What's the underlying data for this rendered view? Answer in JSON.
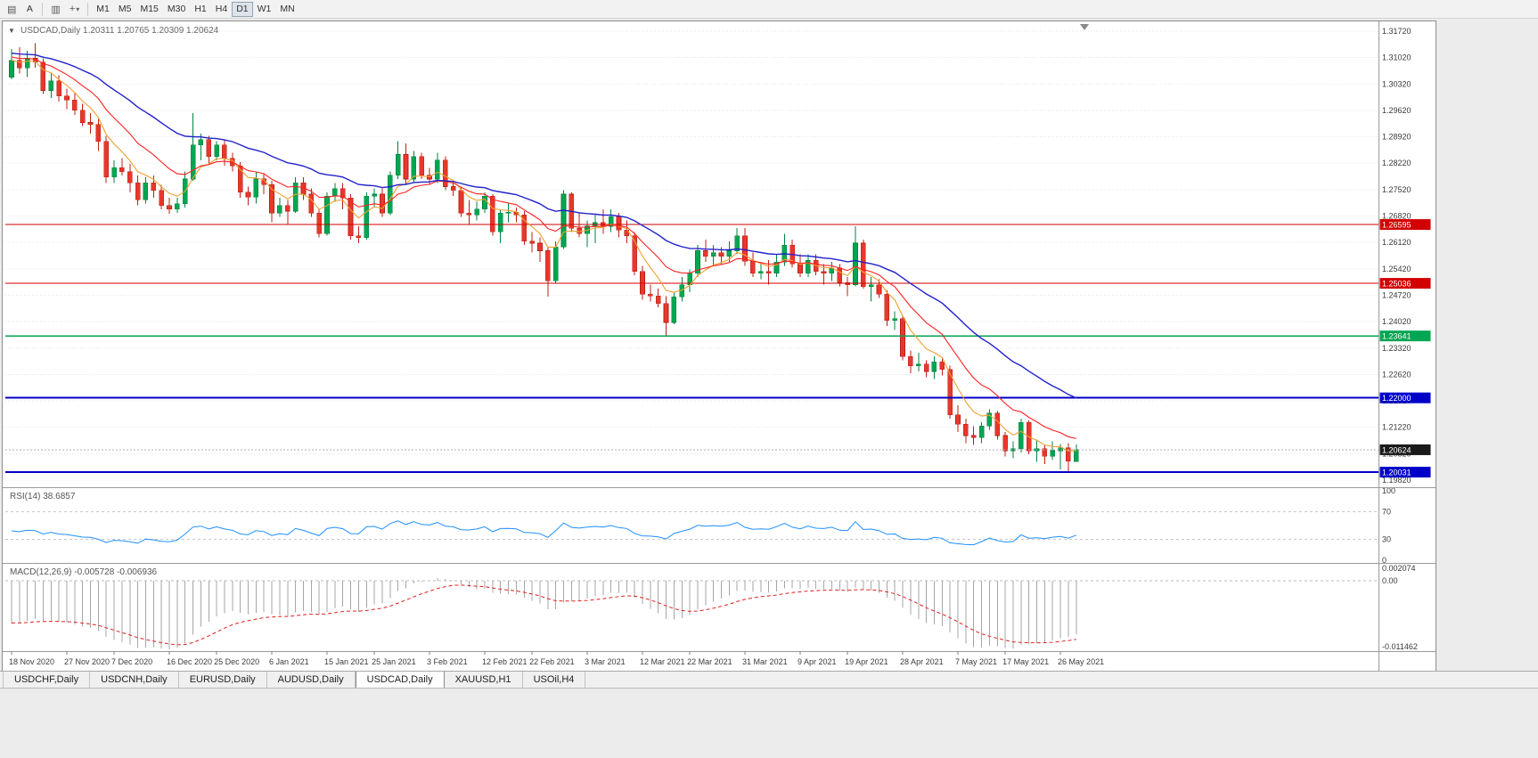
{
  "toolbar": {
    "a_label": "A",
    "icons": [
      {
        "name": "chart-grid-icon",
        "glyph": "▤"
      },
      {
        "name": "font-a-icon",
        "glyph": "A"
      },
      {
        "name": "tile-windows-icon",
        "glyph": "▥"
      },
      {
        "name": "indicators-icon",
        "glyph": "+"
      }
    ],
    "timeframes": [
      "M1",
      "M5",
      "M15",
      "M30",
      "H1",
      "H4",
      "D1",
      "W1",
      "MN"
    ],
    "active_timeframe": "D1"
  },
  "chart_data": {
    "type": "candlestick",
    "symbol_period": "USDCAD,Daily",
    "ohlc_text": "1.20311 1.20765 1.20309 1.20624",
    "current_bar": {
      "open": 1.20311,
      "high": 1.20765,
      "low": 1.20309,
      "close": 1.20624
    },
    "colors": {
      "up_candle": "#00a651",
      "up_stroke": "#00833f",
      "down_candle": "#e8372c",
      "down_stroke": "#bb2015",
      "grid": "#e6e6e6",
      "axis_text": "#3a3a3a",
      "current_price_tag": "#1a1a1a"
    },
    "y_axis_labels": [
      "1.31720",
      "1.31020",
      "1.30320",
      "1.29620",
      "1.28920",
      "1.28220",
      "1.27520",
      "1.26820",
      "1.26120",
      "1.25420",
      "1.24720",
      "1.24020",
      "1.23320",
      "1.22620",
      "1.21920",
      "1.21220",
      "1.20520",
      "1.19820"
    ],
    "x_labels": [
      "18 Nov 2020",
      "27 Nov 2020",
      "7 Dec 2020",
      "16 Dec 2020",
      "25 Dec 2020",
      "6 Jan 2021",
      "15 Jan 2021",
      "25 Jan 2021",
      "3 Feb 2021",
      "12 Feb 2021",
      "22 Feb 2021",
      "3 Mar 2021",
      "12 Mar 2021",
      "22 Mar 2021",
      "31 Mar 2021",
      "9 Apr 2021",
      "19 Apr 2021",
      "28 Apr 2021",
      "7 May 2021",
      "17 May 2021",
      "26 May 2021"
    ],
    "x_label_indices": [
      0,
      7,
      13,
      20,
      26,
      33,
      40,
      46,
      53,
      60,
      66,
      73,
      80,
      86,
      93,
      100,
      106,
      113,
      120,
      126,
      133
    ],
    "hlines": [
      {
        "price": 1.26595,
        "label": "1.26595",
        "color": "#d20000",
        "width": 1.3
      },
      {
        "price": 1.25036,
        "label": "1.25036",
        "color": "#d20000",
        "width": 1.3
      },
      {
        "price": 1.23641,
        "label": "1.23641",
        "color": "#00a651",
        "width": 1.3
      },
      {
        "price": 1.22,
        "label": "1.22000",
        "color": "#0000c8",
        "width": 2
      },
      {
        "price": 1.20031,
        "label": "1.20031",
        "color": "#0000c8",
        "width": 2
      }
    ],
    "current_price": {
      "value": 1.20624,
      "label": "1.20624"
    },
    "moving_averages": [
      {
        "name": "ma-fast",
        "period": 6,
        "color": "#f0a030"
      },
      {
        "name": "ma-medium",
        "period": 13,
        "color": "#ff2020"
      },
      {
        "name": "ma-slow",
        "period": 30,
        "color": "#2222cc"
      }
    ],
    "rsi": {
      "label": "RSI(14) 38.6857",
      "period": 14,
      "value": 38.6857,
      "levels": [
        70,
        30
      ],
      "axis_labels": [
        "100",
        "70",
        "30",
        "0"
      ],
      "axis_values": [
        100,
        70,
        30,
        0
      ],
      "line_color": "#1e90ff"
    },
    "macd": {
      "label": "MACD(12,26,9) -0.005728 -0.006936",
      "fast": 12,
      "slow": 26,
      "signal": 9,
      "value": -0.005728,
      "signal_value": -0.006936,
      "axis_labels": [
        "0.002074",
        "0.00",
        "-0.011462"
      ],
      "axis_values": [
        0.002074,
        0,
        -0.011462
      ],
      "bar_color": "#a6a6a6",
      "signal_color": "#e02020"
    },
    "candles": [
      [
        1.305,
        1.3125,
        1.3045,
        1.3095
      ],
      [
        1.3095,
        1.313,
        1.306,
        1.3075
      ],
      [
        1.3075,
        1.312,
        1.305,
        1.31
      ],
      [
        1.31,
        1.314,
        1.3075,
        1.309
      ],
      [
        1.309,
        1.31,
        1.3005,
        1.3015
      ],
      [
        1.3015,
        1.306,
        1.2995,
        1.304
      ],
      [
        1.304,
        1.3055,
        1.2985,
        1.3
      ],
      [
        1.3,
        1.302,
        1.2965,
        1.299
      ],
      [
        1.299,
        1.301,
        1.295,
        1.2962
      ],
      [
        1.2962,
        1.298,
        1.292,
        1.293
      ],
      [
        1.293,
        1.2955,
        1.29,
        1.2925
      ],
      [
        1.2925,
        1.294,
        1.2855,
        1.288
      ],
      [
        1.288,
        1.2895,
        1.277,
        1.2785
      ],
      [
        1.2785,
        1.283,
        1.277,
        1.281
      ],
      [
        1.281,
        1.2835,
        1.279,
        1.28
      ],
      [
        1.28,
        1.282,
        1.2745,
        1.277
      ],
      [
        1.277,
        1.279,
        1.271,
        1.2725
      ],
      [
        1.2725,
        1.2785,
        1.2715,
        1.277
      ],
      [
        1.277,
        1.279,
        1.273,
        1.275
      ],
      [
        1.275,
        1.2765,
        1.27,
        1.271
      ],
      [
        1.271,
        1.273,
        1.2688,
        1.27
      ],
      [
        1.27,
        1.273,
        1.269,
        1.2715
      ],
      [
        1.2715,
        1.28,
        1.2705,
        1.278
      ],
      [
        1.278,
        1.2955,
        1.2775,
        1.287
      ],
      [
        1.287,
        1.29,
        1.283,
        1.2885
      ],
      [
        1.2885,
        1.2895,
        1.282,
        1.284
      ],
      [
        1.284,
        1.288,
        1.283,
        1.287
      ],
      [
        1.287,
        1.2885,
        1.2815,
        1.2835
      ],
      [
        1.2835,
        1.285,
        1.28,
        1.2815
      ],
      [
        1.2815,
        1.2825,
        1.273,
        1.2745
      ],
      [
        1.2745,
        1.276,
        1.271,
        1.2732
      ],
      [
        1.2732,
        1.28,
        1.2715,
        1.278
      ],
      [
        1.278,
        1.2795,
        1.274,
        1.2765
      ],
      [
        1.2765,
        1.2775,
        1.2665,
        1.269
      ],
      [
        1.269,
        1.273,
        1.268,
        1.271
      ],
      [
        1.271,
        1.2725,
        1.266,
        1.2695
      ],
      [
        1.2695,
        1.2785,
        1.269,
        1.277
      ],
      [
        1.277,
        1.2785,
        1.2725,
        1.274
      ],
      [
        1.274,
        1.2755,
        1.268,
        1.269
      ],
      [
        1.269,
        1.27,
        1.2625,
        1.2635
      ],
      [
        1.2635,
        1.2745,
        1.263,
        1.2735
      ],
      [
        1.2735,
        1.277,
        1.272,
        1.2755
      ],
      [
        1.2755,
        1.277,
        1.27,
        1.273
      ],
      [
        1.273,
        1.274,
        1.262,
        1.263
      ],
      [
        1.263,
        1.2655,
        1.261,
        1.2625
      ],
      [
        1.2625,
        1.2745,
        1.262,
        1.2735
      ],
      [
        1.2735,
        1.2755,
        1.2705,
        1.274
      ],
      [
        1.274,
        1.2755,
        1.268,
        1.269
      ],
      [
        1.269,
        1.28,
        1.2685,
        1.279
      ],
      [
        1.279,
        1.288,
        1.278,
        1.2845
      ],
      [
        1.2845,
        1.2875,
        1.2765,
        1.278
      ],
      [
        1.278,
        1.2855,
        1.277,
        1.284
      ],
      [
        1.284,
        1.285,
        1.278,
        1.279
      ],
      [
        1.279,
        1.281,
        1.2765,
        1.278
      ],
      [
        1.278,
        1.285,
        1.277,
        1.283
      ],
      [
        1.283,
        1.284,
        1.275,
        1.276
      ],
      [
        1.276,
        1.2775,
        1.2735,
        1.275
      ],
      [
        1.275,
        1.276,
        1.268,
        1.269
      ],
      [
        1.269,
        1.2725,
        1.266,
        1.2685
      ],
      [
        1.2685,
        1.272,
        1.267,
        1.27
      ],
      [
        1.27,
        1.2745,
        1.269,
        1.2735
      ],
      [
        1.2735,
        1.274,
        1.263,
        1.264
      ],
      [
        1.264,
        1.27,
        1.261,
        1.269
      ],
      [
        1.269,
        1.2715,
        1.2665,
        1.2692
      ],
      [
        1.2692,
        1.2705,
        1.2665,
        1.2685
      ],
      [
        1.2685,
        1.2695,
        1.2605,
        1.2615
      ],
      [
        1.2615,
        1.264,
        1.2585,
        1.261
      ],
      [
        1.261,
        1.2625,
        1.256,
        1.259
      ],
      [
        1.259,
        1.26,
        1.2468,
        1.251
      ],
      [
        1.251,
        1.2615,
        1.2505,
        1.26
      ],
      [
        1.26,
        1.275,
        1.2595,
        1.274
      ],
      [
        1.274,
        1.2745,
        1.264,
        1.265
      ],
      [
        1.265,
        1.269,
        1.2625,
        1.2635
      ],
      [
        1.2635,
        1.267,
        1.26,
        1.2655
      ],
      [
        1.2655,
        1.2685,
        1.261,
        1.2665
      ],
      [
        1.2665,
        1.27,
        1.2635,
        1.2655
      ],
      [
        1.2655,
        1.27,
        1.264,
        1.268
      ],
      [
        1.268,
        1.269,
        1.2625,
        1.2645
      ],
      [
        1.2645,
        1.267,
        1.261,
        1.263
      ],
      [
        1.263,
        1.264,
        1.2525,
        1.2535
      ],
      [
        1.2535,
        1.255,
        1.246,
        1.2475
      ],
      [
        1.2475,
        1.25,
        1.2455,
        1.247
      ],
      [
        1.247,
        1.249,
        1.244,
        1.245
      ],
      [
        1.245,
        1.247,
        1.2365,
        1.24
      ],
      [
        1.24,
        1.248,
        1.2395,
        1.2468
      ],
      [
        1.2468,
        1.252,
        1.2455,
        1.25
      ],
      [
        1.25,
        1.254,
        1.248,
        1.253
      ],
      [
        1.253,
        1.2605,
        1.252,
        1.259
      ],
      [
        1.259,
        1.262,
        1.256,
        1.2575
      ],
      [
        1.2575,
        1.2605,
        1.255,
        1.2585
      ],
      [
        1.2585,
        1.26,
        1.2555,
        1.2575
      ],
      [
        1.2575,
        1.2615,
        1.256,
        1.259
      ],
      [
        1.259,
        1.265,
        1.258,
        1.263
      ],
      [
        1.263,
        1.265,
        1.255,
        1.2562
      ],
      [
        1.2562,
        1.2585,
        1.252,
        1.253
      ],
      [
        1.253,
        1.256,
        1.2515,
        1.2535
      ],
      [
        1.2535,
        1.2565,
        1.25,
        1.253
      ],
      [
        1.253,
        1.258,
        1.252,
        1.256
      ],
      [
        1.256,
        1.2635,
        1.255,
        1.2605
      ],
      [
        1.2605,
        1.262,
        1.2545,
        1.2555
      ],
      [
        1.2555,
        1.258,
        1.252,
        1.253
      ],
      [
        1.253,
        1.258,
        1.252,
        1.2565
      ],
      [
        1.2565,
        1.258,
        1.2525,
        1.2535
      ],
      [
        1.2535,
        1.2555,
        1.25,
        1.253
      ],
      [
        1.253,
        1.256,
        1.251,
        1.2545
      ],
      [
        1.2545,
        1.2555,
        1.2495,
        1.2505
      ],
      [
        1.2505,
        1.252,
        1.247,
        1.25
      ],
      [
        1.25,
        1.2655,
        1.2495,
        1.261
      ],
      [
        1.261,
        1.262,
        1.249,
        1.2495
      ],
      [
        1.2495,
        1.252,
        1.2455,
        1.25
      ],
      [
        1.25,
        1.2515,
        1.2465,
        1.2475
      ],
      [
        1.2475,
        1.2485,
        1.239,
        1.2405
      ],
      [
        1.2405,
        1.243,
        1.238,
        1.241
      ],
      [
        1.241,
        1.242,
        1.23,
        1.231
      ],
      [
        1.231,
        1.2325,
        1.2265,
        1.2285
      ],
      [
        1.2285,
        1.232,
        1.227,
        1.229
      ],
      [
        1.229,
        1.23,
        1.2255,
        1.227
      ],
      [
        1.227,
        1.231,
        1.225,
        1.2295
      ],
      [
        1.2295,
        1.2305,
        1.226,
        1.2275
      ],
      [
        1.2275,
        1.2285,
        1.2145,
        1.2155
      ],
      [
        1.2155,
        1.218,
        1.211,
        1.213
      ],
      [
        1.213,
        1.2145,
        1.208,
        1.21
      ],
      [
        1.21,
        1.2125,
        1.2075,
        1.2095
      ],
      [
        1.2095,
        1.2135,
        1.208,
        1.2125
      ],
      [
        1.2125,
        1.217,
        1.2115,
        1.216
      ],
      [
        1.216,
        1.2165,
        1.209,
        1.21
      ],
      [
        1.21,
        1.211,
        1.2045,
        1.206
      ],
      [
        1.206,
        1.2085,
        1.204,
        1.2065
      ],
      [
        1.2065,
        1.2145,
        1.2055,
        1.2135
      ],
      [
        1.2135,
        1.214,
        1.205,
        1.206
      ],
      [
        1.206,
        1.209,
        1.203,
        1.2065
      ],
      [
        1.2065,
        1.2075,
        1.2025,
        1.2045
      ],
      [
        1.2045,
        1.2085,
        1.2035,
        1.206
      ],
      [
        1.206,
        1.2078,
        1.201,
        1.2068
      ],
      [
        1.2068,
        1.208,
        1.20031,
        1.2032
      ],
      [
        1.20311,
        1.20765,
        1.20309,
        1.20624
      ]
    ]
  },
  "tabs": {
    "items": [
      "USDCHF,Daily",
      "USDCNH,Daily",
      "EURUSD,Daily",
      "AUDUSD,Daily",
      "USDCAD,Daily",
      "XAUUSD,H1",
      "USOil,H4"
    ],
    "active": "USDCAD,Daily"
  }
}
